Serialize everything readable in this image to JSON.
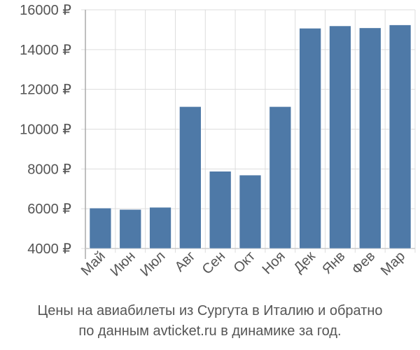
{
  "chart_data": {
    "type": "bar",
    "title_line1": "Цены на авиабилеты из Сургута в Италию и обратно",
    "title_line2": "по данным avticket.ru в динамике за год.",
    "xlabel": "",
    "ylabel": "",
    "categories": [
      "Май",
      "Июн",
      "Июл",
      "Авг",
      "Сен",
      "Окт",
      "Ноя",
      "Дек",
      "Янв",
      "Фев",
      "Мар"
    ],
    "values": [
      6030,
      5960,
      6070,
      11130,
      7880,
      7690,
      11130,
      15070,
      15190,
      15090,
      15240
    ],
    "ylim": [
      4000,
      16000
    ],
    "yticks": [
      4000,
      6000,
      8000,
      10000,
      12000,
      14000,
      16000
    ],
    "ytick_labels": [
      "4000 ₽",
      "6000 ₽",
      "8000 ₽",
      "10000 ₽",
      "12000 ₽",
      "14000 ₽",
      "16000 ₽"
    ],
    "grid": true,
    "bar_color": "#4e79a7"
  }
}
